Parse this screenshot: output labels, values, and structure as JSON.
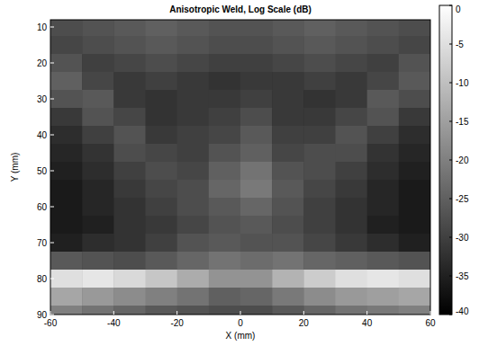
{
  "chart_data": {
    "type": "heatmap",
    "title": "Anisotropic Weld, Log Scale (dB)",
    "x_label": "X (mm)",
    "y_label": "Y (mm)",
    "x": [
      -55,
      -45,
      -35,
      -25,
      -15,
      -5,
      5,
      15,
      25,
      35,
      45,
      55
    ],
    "y": [
      10,
      15,
      20,
      25,
      30,
      35,
      40,
      45,
      50,
      55,
      60,
      65,
      70,
      75,
      80,
      85,
      90
    ],
    "cells": [
      [
        -28,
        -27,
        -26,
        -25,
        -26,
        -27,
        -27,
        -26,
        -25,
        -26,
        -27,
        -28
      ],
      [
        -29,
        -28,
        -27,
        -26,
        -27,
        -28,
        -28,
        -27,
        -26,
        -27,
        -28,
        -29
      ],
      [
        -27,
        -30,
        -29,
        -28,
        -29,
        -30,
        -30,
        -29,
        -28,
        -29,
        -30,
        -27
      ],
      [
        -25,
        -29,
        -31,
        -30,
        -31,
        -32,
        -31,
        -31,
        -30,
        -31,
        -29,
        -26
      ],
      [
        -27,
        -26,
        -31,
        -32,
        -31,
        -31,
        -30,
        -31,
        -32,
        -31,
        -26,
        -28
      ],
      [
        -31,
        -27,
        -29,
        -32,
        -31,
        -30,
        -28,
        -31,
        -31,
        -29,
        -27,
        -31
      ],
      [
        -33,
        -30,
        -27,
        -31,
        -30,
        -29,
        -26,
        -30,
        -30,
        -27,
        -30,
        -33
      ],
      [
        -34,
        -32,
        -28,
        -29,
        -30,
        -27,
        -25,
        -29,
        -28,
        -28,
        -32,
        -34
      ],
      [
        -35,
        -33,
        -30,
        -28,
        -29,
        -25,
        -22,
        -27,
        -28,
        -30,
        -33,
        -35
      ],
      [
        -36,
        -34,
        -31,
        -29,
        -28,
        -24,
        -21,
        -26,
        -29,
        -31,
        -34,
        -36
      ],
      [
        -36,
        -34,
        -32,
        -30,
        -28,
        -26,
        -24,
        -27,
        -30,
        -32,
        -34,
        -36
      ],
      [
        -36,
        -35,
        -32,
        -31,
        -29,
        -27,
        -26,
        -28,
        -30,
        -32,
        -35,
        -36
      ],
      [
        -35,
        -33,
        -32,
        -30,
        -27,
        -26,
        -27,
        -27,
        -29,
        -31,
        -33,
        -35
      ],
      [
        -26,
        -27,
        -28,
        -26,
        -24,
        -22,
        -23,
        -22,
        -24,
        -25,
        -26,
        -27
      ],
      [
        -5,
        -4,
        -6,
        -9,
        -13,
        -17,
        -17,
        -12,
        -8,
        -5,
        -4,
        -5
      ],
      [
        -14,
        -16,
        -18,
        -20,
        -22,
        -25,
        -24,
        -21,
        -18,
        -16,
        -15,
        -14
      ],
      [
        -20,
        -22,
        -24,
        -26,
        -27,
        -28,
        -28,
        -26,
        -24,
        -22,
        -21,
        -20
      ]
    ],
    "xlim": [
      -60,
      60
    ],
    "xticks": [
      -60,
      -40,
      -20,
      0,
      20,
      40,
      60
    ],
    "ylim": [
      8,
      90
    ],
    "yticks": [
      10,
      20,
      30,
      40,
      50,
      60,
      70,
      80,
      90
    ],
    "color_range": [
      -40,
      0
    ],
    "color_ticks": [
      0,
      -5,
      -10,
      -15,
      -20,
      -25,
      -30,
      -35,
      -40
    ]
  }
}
